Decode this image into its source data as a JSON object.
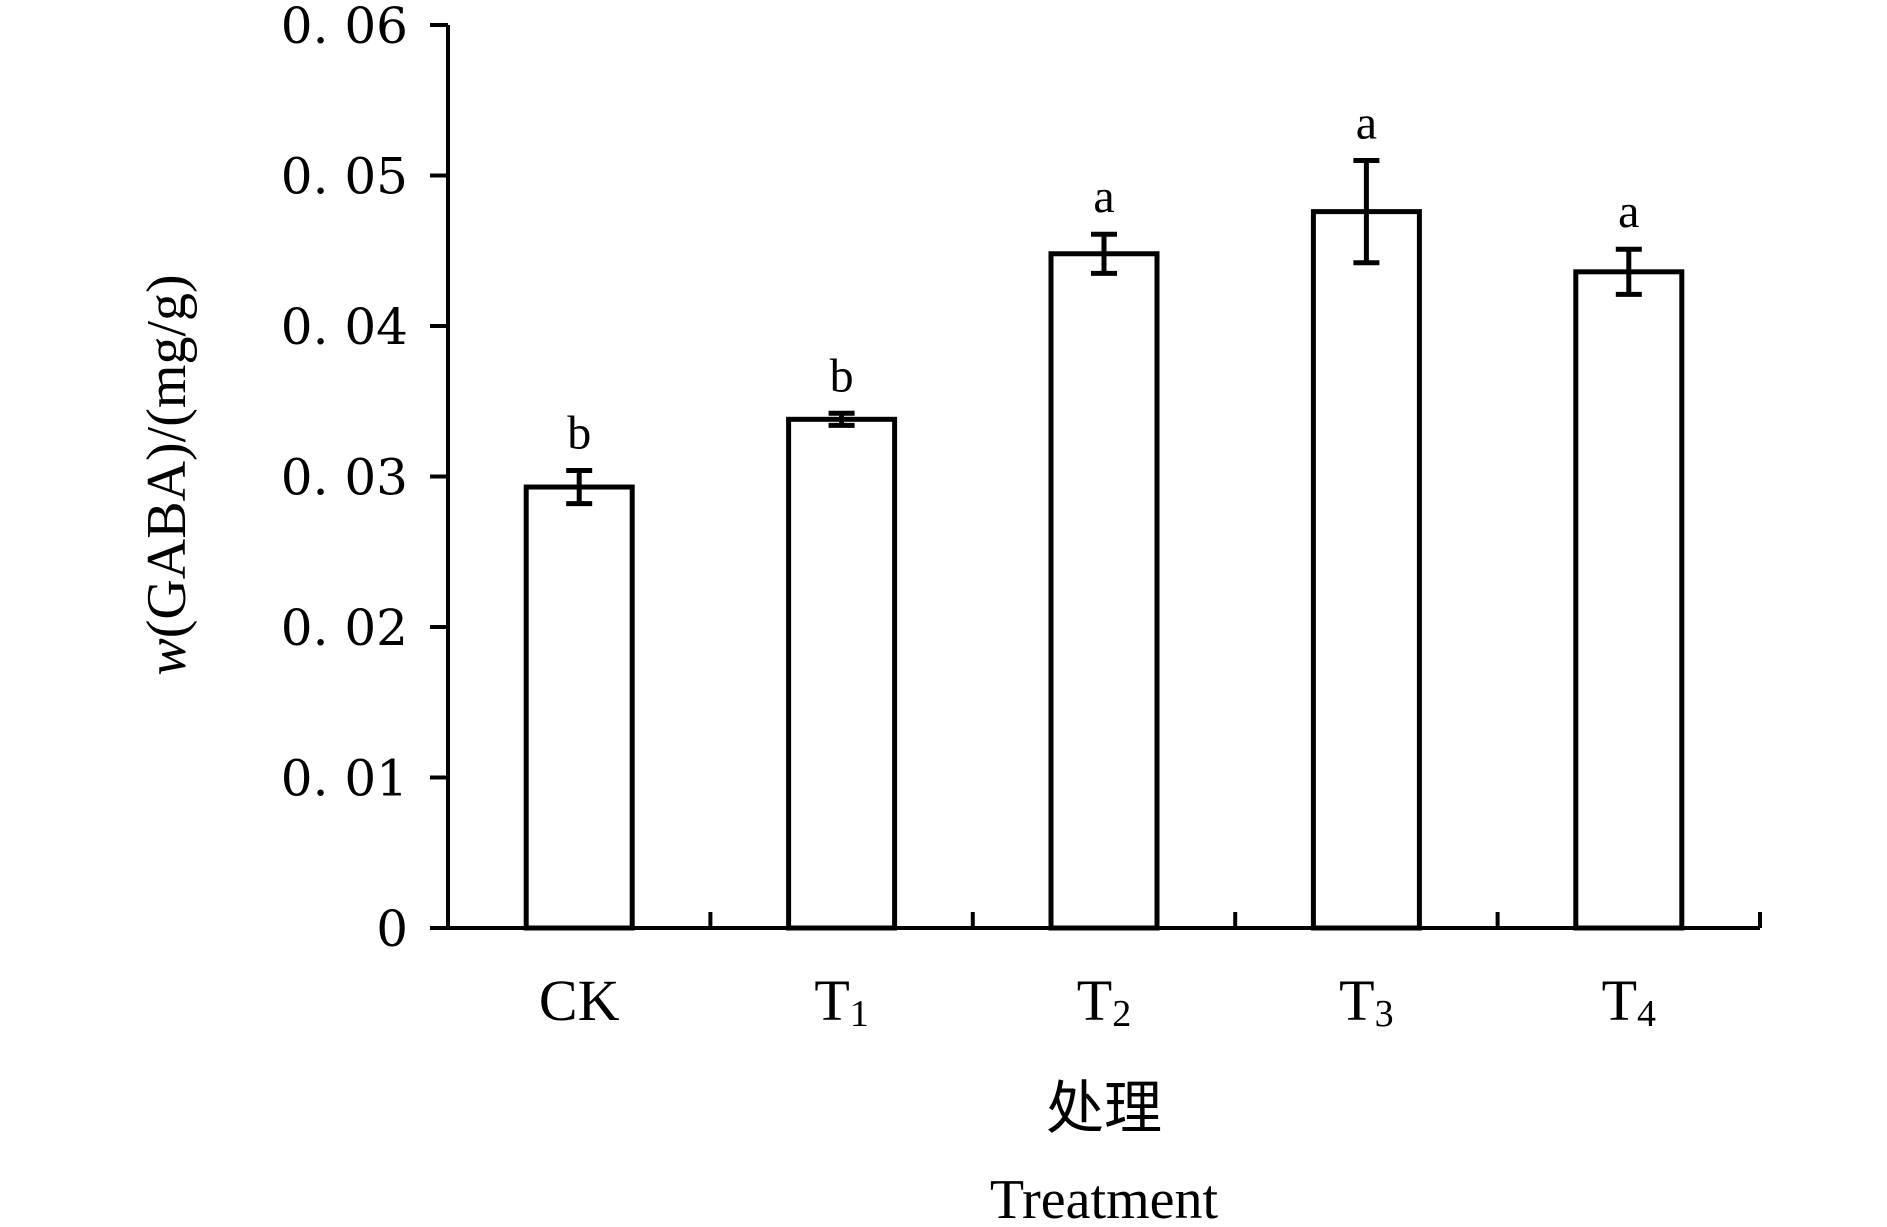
{
  "chart_data": {
    "type": "bar",
    "categories": [
      {
        "base": "CK",
        "sub": ""
      },
      {
        "base": "T",
        "sub": "1"
      },
      {
        "base": "T",
        "sub": "2"
      },
      {
        "base": "T",
        "sub": "3"
      },
      {
        "base": "T",
        "sub": "4"
      }
    ],
    "values": [
      0.0293,
      0.0338,
      0.0448,
      0.0476,
      0.0436
    ],
    "errors": [
      0.0011,
      0.0004,
      0.0013,
      0.0034,
      0.0015
    ],
    "significance": [
      "b",
      "b",
      "a",
      "a",
      "a"
    ],
    "ylabel_italic": "w",
    "ylabel_rest": "(GABA)/(mg/g)",
    "xlabel_cn": "处理",
    "xlabel_en": "Treatment",
    "ylim": [
      0,
      0.06
    ],
    "yticks": [
      0,
      0.01,
      0.02,
      0.03,
      0.04,
      0.05,
      0.06
    ],
    "ytick_labels": [
      "0",
      "0. 01",
      "0. 02",
      "0. 03",
      "0. 04",
      "0. 05",
      "0. 06"
    ],
    "grid": false,
    "legend": "none"
  }
}
